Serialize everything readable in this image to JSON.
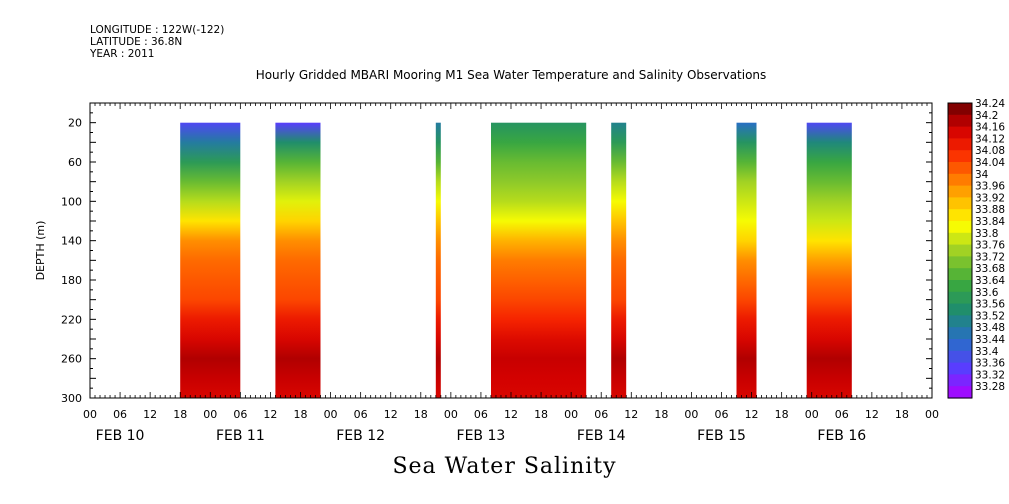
{
  "header": {
    "longitude": "LONGITUDE : 122W(-122)",
    "latitude": "LATITUDE : 36.8N",
    "year": "YEAR : 2011"
  },
  "chart_data": {
    "type": "heatmap",
    "title": "Hourly Gridded MBARI Mooring M1 Sea Water Temperature and Salinity Observations",
    "footer": "Sea Water Salinity",
    "ylabel": "DEPTH (m)",
    "ylim": [
      300,
      0
    ],
    "yticks": [
      20,
      60,
      100,
      140,
      180,
      220,
      260,
      300
    ],
    "xlim_hours": [
      0,
      168
    ],
    "x_tick_labels": [
      "00",
      "06",
      "12",
      "18",
      "00",
      "06",
      "12",
      "18",
      "00",
      "06",
      "12",
      "18",
      "00",
      "06",
      "12",
      "18",
      "00",
      "06",
      "12",
      "18",
      "00",
      "06",
      "12",
      "18",
      "00",
      "06",
      "12",
      "18",
      "00"
    ],
    "day_labels": [
      "FEB 10",
      "FEB 11",
      "FEB 12",
      "FEB 13",
      "FEB 14",
      "FEB 15",
      "FEB 16"
    ],
    "colorbar": {
      "min": 33.28,
      "max": 34.26,
      "labels": [
        "34.24",
        "34.2",
        "34.16",
        "34.12",
        "34.08",
        "34.04",
        "34",
        "33.96",
        "33.92",
        "33.88",
        "33.84",
        "33.8",
        "33.76",
        "33.72",
        "33.68",
        "33.64",
        "33.6",
        "33.56",
        "33.52",
        "33.48",
        "33.44",
        "33.4",
        "33.36",
        "33.32",
        "33.28"
      ]
    },
    "depths": [
      20,
      40,
      60,
      80,
      100,
      120,
      140,
      160,
      180,
      200,
      220,
      240,
      260,
      280,
      300
    ],
    "blocks": [
      {
        "start_hour": 18,
        "end_hour": 30,
        "profile": [
          33.4,
          33.52,
          33.62,
          33.72,
          33.8,
          33.9,
          34.0,
          34.04,
          34.06,
          34.08,
          34.14,
          34.18,
          34.22,
          34.2,
          34.18
        ]
      },
      {
        "start_hour": 37,
        "end_hour": 46,
        "profile": [
          33.38,
          33.58,
          33.7,
          33.78,
          33.84,
          33.92,
          34.0,
          34.04,
          34.06,
          34.08,
          34.14,
          34.18,
          34.22,
          34.2,
          34.18
        ]
      },
      {
        "start_hour": 69,
        "end_hour": 70,
        "profile": [
          33.52,
          33.6,
          33.7,
          33.8,
          33.86,
          33.94,
          34.0,
          34.04,
          34.06,
          34.08,
          34.14,
          34.18,
          34.22,
          34.2,
          34.18
        ]
      },
      {
        "start_hour": 80,
        "end_hour": 99,
        "profile": [
          33.6,
          33.66,
          33.72,
          33.76,
          33.8,
          33.86,
          33.96,
          34.02,
          34.05,
          34.08,
          34.12,
          34.17,
          34.2,
          34.19,
          34.18
        ]
      },
      {
        "start_hour": 104,
        "end_hour": 107,
        "profile": [
          33.54,
          33.62,
          33.72,
          33.8,
          33.86,
          33.94,
          34.0,
          34.04,
          34.06,
          34.08,
          34.14,
          34.18,
          34.22,
          34.2,
          34.18
        ]
      },
      {
        "start_hour": 129,
        "end_hour": 133,
        "profile": [
          33.48,
          33.6,
          33.7,
          33.78,
          33.82,
          33.86,
          33.92,
          34.0,
          34.04,
          34.08,
          34.14,
          34.18,
          34.22,
          34.2,
          34.18
        ]
      },
      {
        "start_hour": 143,
        "end_hour": 152,
        "profile": [
          33.4,
          33.56,
          33.66,
          33.72,
          33.78,
          33.82,
          33.9,
          33.98,
          34.04,
          34.08,
          34.14,
          34.18,
          34.22,
          34.2,
          34.18
        ]
      }
    ]
  }
}
